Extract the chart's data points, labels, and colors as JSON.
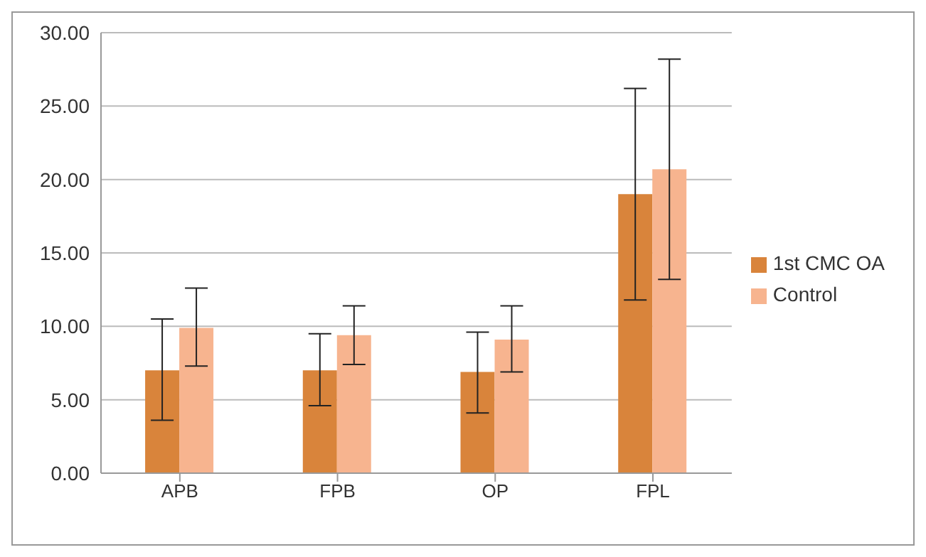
{
  "chart_data": {
    "type": "bar",
    "categories": [
      "APB",
      "FPB",
      "OP",
      "FPL"
    ],
    "series": [
      {
        "name": "1st CMC OA",
        "color": "#d9843b",
        "values": [
          7.0,
          7.0,
          6.9,
          19.0
        ],
        "errors": [
          [
            3.6,
            10.5
          ],
          [
            4.6,
            9.5
          ],
          [
            4.1,
            9.6
          ],
          [
            11.8,
            26.2
          ]
        ]
      },
      {
        "name": "Control",
        "color": "#f7b48f",
        "values": [
          9.9,
          9.4,
          9.1,
          20.7
        ],
        "errors": [
          [
            7.3,
            12.6
          ],
          [
            7.4,
            11.4
          ],
          [
            6.9,
            11.4
          ],
          [
            13.2,
            28.2
          ]
        ]
      }
    ],
    "ylim": [
      0,
      30
    ],
    "yticks": [
      {
        "value": 0,
        "label": "0.00"
      },
      {
        "value": 5,
        "label": "5.00"
      },
      {
        "value": 10,
        "label": "10.00"
      },
      {
        "value": 15,
        "label": "15.00"
      },
      {
        "value": 20,
        "label": "20.00"
      },
      {
        "value": 25,
        "label": "25.00"
      },
      {
        "value": 30,
        "label": "30.00"
      }
    ],
    "grid": "y",
    "legend": "right"
  }
}
